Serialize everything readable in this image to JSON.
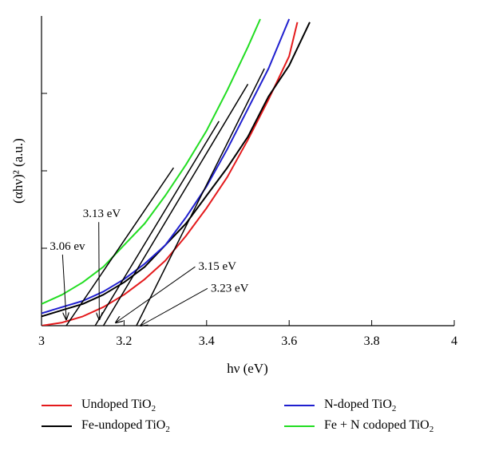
{
  "chart_data": {
    "type": "line",
    "xlabel": "hν (eV)",
    "ylabel": "(αhν)² (a.u.)",
    "xlim": [
      3,
      4
    ],
    "ylim": [
      0,
      1
    ],
    "x_ticks": [
      "3",
      "3.2",
      "3.4",
      "3.6",
      "3.8",
      "4"
    ],
    "y_ticks_labeled": false,
    "grid": false,
    "legend_position": "bottom",
    "series": [
      {
        "name": "Undoped TiO2",
        "color": "#e41a1c",
        "x": [
          3.0,
          3.05,
          3.1,
          3.15,
          3.2,
          3.25,
          3.3,
          3.35,
          3.4,
          3.45,
          3.5,
          3.55,
          3.6,
          3.62
        ],
        "y": [
          0.0,
          0.01,
          0.03,
          0.06,
          0.1,
          0.15,
          0.21,
          0.29,
          0.38,
          0.48,
          0.6,
          0.73,
          0.87,
          0.98
        ]
      },
      {
        "name": "Fe-undoped TiO2",
        "color": "#000000",
        "x": [
          3.0,
          3.05,
          3.1,
          3.15,
          3.2,
          3.25,
          3.3,
          3.35,
          3.4,
          3.45,
          3.5,
          3.55,
          3.6,
          3.65
        ],
        "y": [
          0.03,
          0.05,
          0.07,
          0.1,
          0.14,
          0.19,
          0.26,
          0.33,
          0.42,
          0.51,
          0.61,
          0.74,
          0.84,
          0.98
        ]
      },
      {
        "name": "N-doped TiO2",
        "color": "#1f1fcf",
        "x": [
          3.0,
          3.05,
          3.1,
          3.15,
          3.2,
          3.25,
          3.3,
          3.35,
          3.4,
          3.45,
          3.5,
          3.55,
          3.6
        ],
        "y": [
          0.04,
          0.06,
          0.08,
          0.11,
          0.15,
          0.2,
          0.26,
          0.35,
          0.45,
          0.57,
          0.7,
          0.83,
          0.99
        ]
      },
      {
        "name": "Fe + N codoped TiO2",
        "color": "#22dd22",
        "x": [
          3.0,
          3.05,
          3.1,
          3.15,
          3.2,
          3.25,
          3.3,
          3.35,
          3.4,
          3.45,
          3.5,
          3.53
        ],
        "y": [
          0.07,
          0.1,
          0.14,
          0.19,
          0.26,
          0.33,
          0.42,
          0.52,
          0.63,
          0.76,
          0.9,
          0.99
        ]
      }
    ],
    "tangent_lines": [
      {
        "x": [
          3.06,
          3.32
        ],
        "y": [
          0.0,
          0.51
        ]
      },
      {
        "x": [
          3.13,
          3.43
        ],
        "y": [
          0.0,
          0.66
        ]
      },
      {
        "x": [
          3.15,
          3.5
        ],
        "y": [
          0.0,
          0.78
        ]
      },
      {
        "x": [
          3.23,
          3.54
        ],
        "y": [
          0.0,
          0.83
        ]
      }
    ],
    "annotations": [
      {
        "text": "3.06 ev",
        "label_x": 3.02,
        "label_y": 0.245,
        "arrow_to": [
          3.06,
          0.02
        ]
      },
      {
        "text": "3.13 eV",
        "label_x": 3.1,
        "label_y": 0.35,
        "arrow_to": [
          3.14,
          0.02
        ]
      },
      {
        "text": "3.15 eV",
        "label_x": 3.38,
        "label_y": 0.18,
        "arrow_to": [
          3.18,
          0.01
        ]
      },
      {
        "text": "3.23 eV",
        "label_x": 3.41,
        "label_y": 0.11,
        "arrow_to": [
          3.24,
          0.0
        ]
      }
    ]
  },
  "legend": [
    {
      "prefix": "Undoped TiO",
      "sub": "2",
      "color": "#e41a1c"
    },
    {
      "prefix": "N-doped TiO",
      "sub": "2",
      "color": "#1f1fcf"
    },
    {
      "prefix": "Fe-undoped TiO",
      "sub": "2",
      "color": "#000000"
    },
    {
      "prefix": "Fe + N codoped TiO",
      "sub": "2",
      "color": "#22dd22"
    }
  ]
}
